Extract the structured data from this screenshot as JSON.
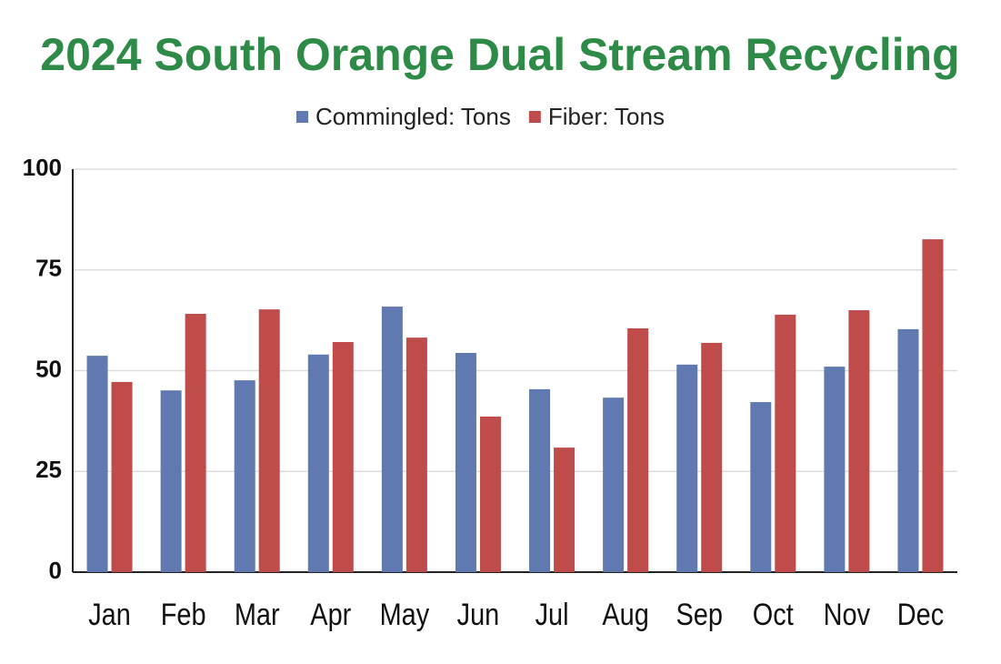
{
  "chart_data": {
    "type": "grouped-bar",
    "title": "2024 South Orange Dual Stream Recycling",
    "categories": [
      "Jan",
      "Feb",
      "Mar",
      "Apr",
      "May",
      "Jun",
      "Jul",
      "Aug",
      "Sep",
      "Oct",
      "Nov",
      "Dec"
    ],
    "series": [
      {
        "name": "Commingled: Tons",
        "color": "#6079b0",
        "values": [
          53.7,
          45.1,
          47.6,
          54,
          65.9,
          54.4,
          45.4,
          43.3,
          51.5,
          42.2,
          51,
          60.3
        ]
      },
      {
        "name": "Fiber: Tons",
        "color": "#bf4b4a",
        "values": [
          47.2,
          64.1,
          65.2,
          57.1,
          58.2,
          38.6,
          30.9,
          60.5,
          56.9,
          63.9,
          65,
          82.6
        ]
      }
    ],
    "ylim": [
      0,
      100
    ],
    "yticks": [
      0,
      25,
      50,
      75,
      100
    ],
    "grid": true,
    "legend": "top"
  }
}
